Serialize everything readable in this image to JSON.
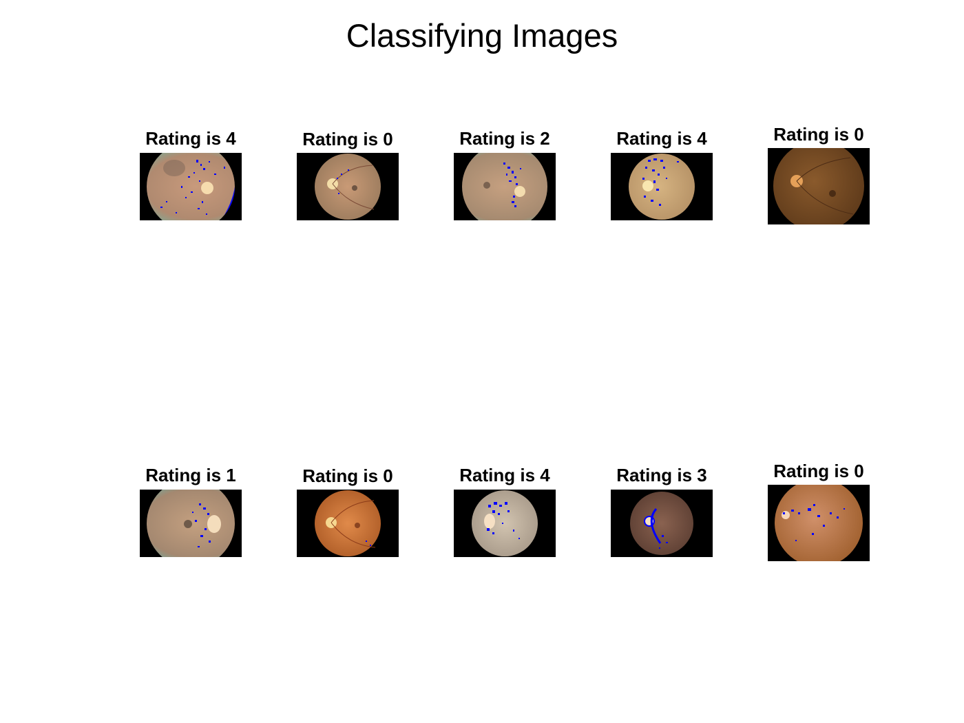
{
  "figure": {
    "title": "Classifying Images"
  },
  "panels": [
    {
      "title": "Rating is 4"
    },
    {
      "title": "Rating is 0"
    },
    {
      "title": "Rating is 2"
    },
    {
      "title": "Rating is 4"
    },
    {
      "title": "Rating is 0"
    },
    {
      "title": "Rating is 1"
    },
    {
      "title": "Rating is 0"
    },
    {
      "title": "Rating is 4"
    },
    {
      "title": "Rating is 3"
    },
    {
      "title": "Rating is 0"
    }
  ],
  "colors": {
    "background": "#ffffff",
    "image_border": "#000000",
    "lesion_highlight": "#0000ff"
  }
}
